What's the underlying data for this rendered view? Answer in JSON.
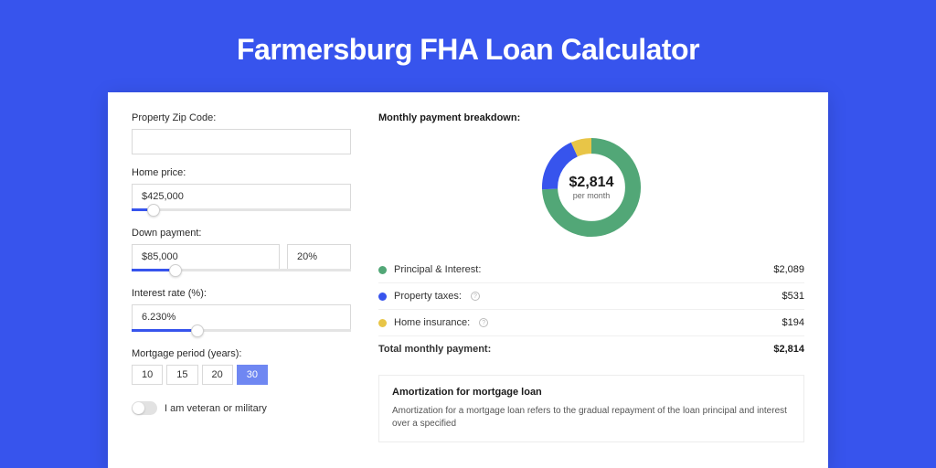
{
  "title": "Farmersburg FHA Loan Calculator",
  "colors": {
    "page_bg": "#3754ed",
    "card_bg": "#ffffff",
    "slider_fill": "#3754ed",
    "period_active_bg": "#6f87f2"
  },
  "form": {
    "zip": {
      "label": "Property Zip Code:",
      "value": ""
    },
    "home_price": {
      "label": "Home price:",
      "value": "$425,000",
      "slider_pct": 10
    },
    "down_payment": {
      "label": "Down payment:",
      "value": "$85,000",
      "pct": "20%",
      "slider_pct": 20
    },
    "interest_rate": {
      "label": "Interest rate (%):",
      "value": "6.230%",
      "slider_pct": 30
    },
    "mortgage_period": {
      "label": "Mortgage period (years):",
      "options": [
        "10",
        "15",
        "20",
        "30"
      ],
      "active": "30"
    },
    "veteran": {
      "label": "I am veteran or military",
      "on": false
    }
  },
  "breakdown": {
    "title": "Monthly payment breakdown:",
    "donut": {
      "value": "$2,814",
      "sub": "per month",
      "slices": [
        {
          "key": "pi",
          "pct": 74.2,
          "color": "#52a777"
        },
        {
          "key": "tax",
          "pct": 18.9,
          "color": "#3754ed"
        },
        {
          "key": "ins",
          "pct": 6.9,
          "color": "#e8c547"
        }
      ]
    },
    "rows": [
      {
        "label": "Principal & Interest:",
        "amount": "$2,089",
        "color": "#52a777",
        "info": false
      },
      {
        "label": "Property taxes:",
        "amount": "$531",
        "color": "#3754ed",
        "info": true
      },
      {
        "label": "Home insurance:",
        "amount": "$194",
        "color": "#e8c547",
        "info": true
      }
    ],
    "total": {
      "label": "Total monthly payment:",
      "amount": "$2,814"
    }
  },
  "amortization": {
    "title": "Amortization for mortgage loan",
    "text": "Amortization for a mortgage loan refers to the gradual repayment of the loan principal and interest over a specified"
  }
}
